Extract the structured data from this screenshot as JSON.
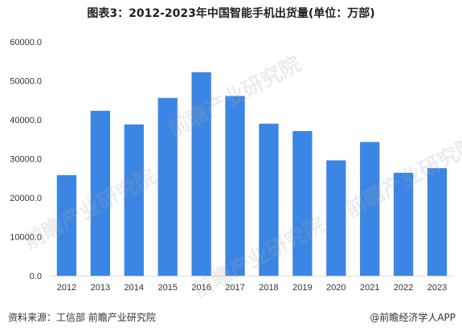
{
  "title": "图表3：2012-2023年中国智能手机出货量(单位：万部)",
  "source": "资料来源：工信部 前瞻产业研究院",
  "brand": "@前瞻经济学人APP",
  "watermark": "前瞻产业研究院",
  "colors": {
    "bar": "#3b86e4",
    "axis": "#d9d9d9",
    "text": "#333333"
  },
  "chart_data": {
    "type": "bar",
    "categories": [
      "2012",
      "2013",
      "2014",
      "2015",
      "2016",
      "2017",
      "2018",
      "2019",
      "2020",
      "2021",
      "2022",
      "2023"
    ],
    "values": [
      25800,
      42300,
      38800,
      45600,
      52200,
      46100,
      39000,
      37100,
      29600,
      34300,
      26400,
      27600
    ],
    "ylim": [
      0,
      60000
    ],
    "yticks": [
      "0.0",
      "10000.0",
      "20000.0",
      "30000.0",
      "40000.0",
      "50000.0",
      "60000.0"
    ],
    "grid": false,
    "legend": "none"
  }
}
